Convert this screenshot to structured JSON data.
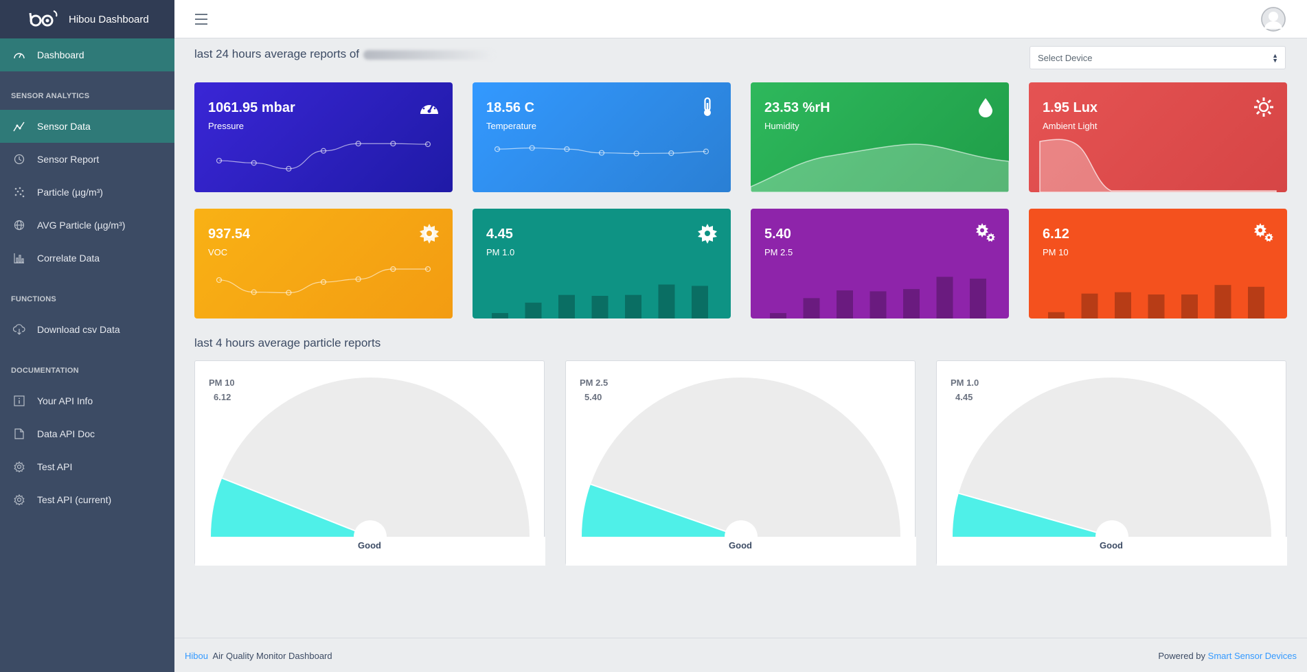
{
  "brand": {
    "name": "Hibou Dashboard",
    "logo_text": "bo"
  },
  "sidebar": {
    "dashboard": "Dashboard",
    "sections": [
      {
        "title": "SENSOR ANALYTICS",
        "items": [
          "Sensor Data",
          "Sensor Report",
          "Particle (µg/m³)",
          "AVG Particle (µg/m³)",
          "Correlate Data"
        ]
      },
      {
        "title": "FUNCTIONS",
        "items": [
          "Download csv Data"
        ]
      },
      {
        "title": "DOCUMENTATION",
        "items": [
          "Your API Info",
          "Data API Doc",
          "Test API",
          "Test API (current)"
        ]
      }
    ]
  },
  "main": {
    "report_title": "last 24 hours average reports of",
    "select_placeholder": "Select Device",
    "particle_title": "last 4 hours average particle reports",
    "cards": [
      {
        "value": "1061.95 mbar",
        "label": "Pressure",
        "color": "#321fdb",
        "icon": "speedometer-icon",
        "spark": [
          0.38,
          0.3,
          0.1,
          0.72,
          0.97,
          0.97,
          0.95
        ]
      },
      {
        "value": "18.56 C",
        "label": "Temperature",
        "color": "#2f8fec",
        "icon": "thermometer-icon",
        "spark": [
          0.78,
          0.82,
          0.78,
          0.65,
          0.63,
          0.64,
          0.7
        ]
      },
      {
        "value": "23.53 %rH",
        "label": "Humidity",
        "color": "#2eb85c",
        "icon": "drop-icon"
      },
      {
        "value": "1.95 Lux",
        "label": "Ambient Light",
        "color": "#e55353",
        "icon": "sun-icon"
      },
      {
        "value": "937.54",
        "label": "VOC",
        "color": "#f9b115",
        "icon": "gear-icon",
        "spark": [
          0.62,
          0.2,
          0.18,
          0.55,
          0.65,
          1.0,
          1.0
        ]
      },
      {
        "value": "4.45",
        "label": "PM 1.0",
        "color": "#0e9384",
        "icon": "gear-icon",
        "bars": [
          0.12,
          0.35,
          0.52,
          0.5,
          0.52,
          0.75,
          0.72
        ]
      },
      {
        "value": "5.40",
        "label": "PM 2.5",
        "color": "#9c27b0",
        "icon": "gears-icon",
        "bars": [
          0.12,
          0.45,
          0.62,
          0.6,
          0.65,
          0.92,
          0.88
        ]
      },
      {
        "value": "6.12",
        "label": "PM 10",
        "color": "#f4511e",
        "icon": "gears-icon",
        "bars": [
          0.14,
          0.55,
          0.58,
          0.53,
          0.53,
          0.74,
          0.7
        ]
      }
    ],
    "gauges": [
      {
        "name": "PM 10",
        "value": "6.12",
        "status": "Good",
        "fraction": 0.12
      },
      {
        "name": "PM 2.5",
        "value": "5.40",
        "status": "Good",
        "fraction": 0.107
      },
      {
        "name": "PM 1.0",
        "value": "4.45",
        "status": "Good",
        "fraction": 0.088
      }
    ]
  },
  "footer": {
    "brand": "Hibou",
    "text": "Air Quality Monitor Dashboard",
    "powered": "Powered by",
    "company": "Smart Sensor Devices"
  }
}
